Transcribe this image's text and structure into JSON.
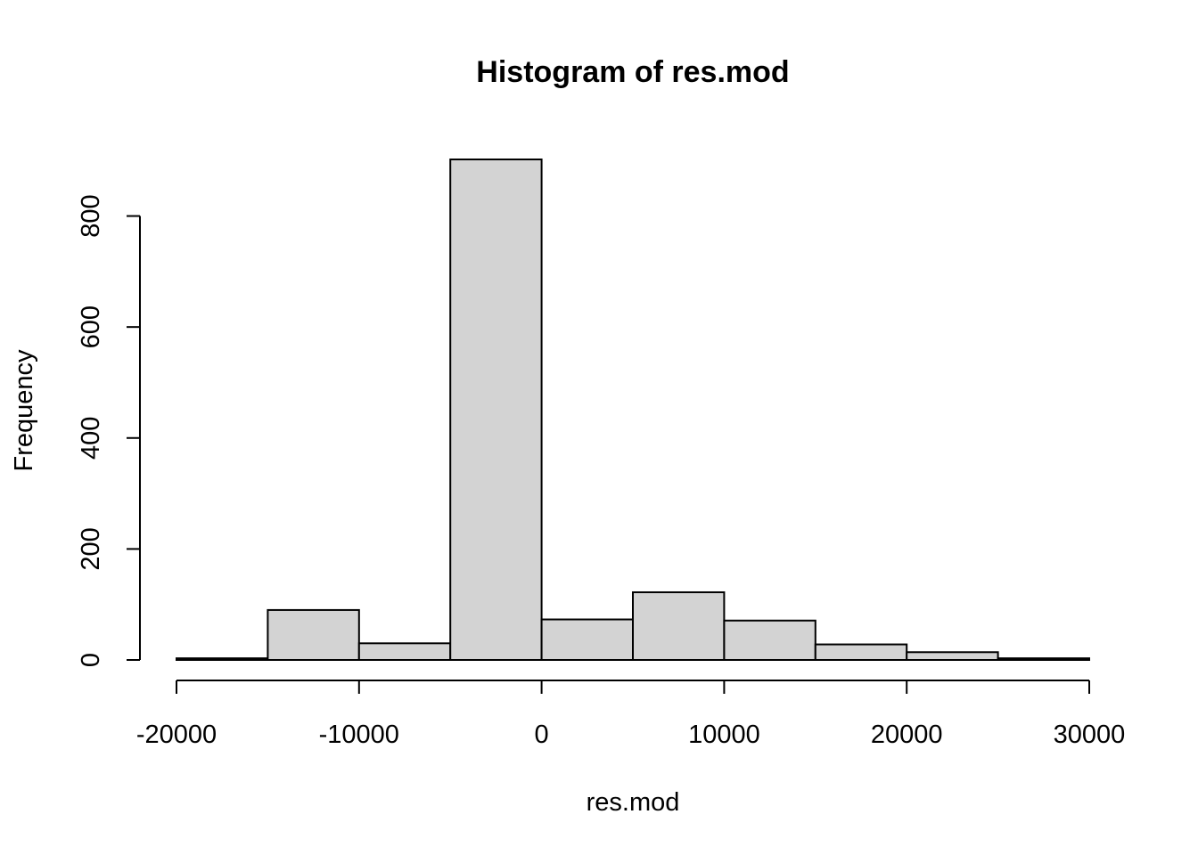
{
  "chart_data": {
    "type": "bar",
    "title": "Histogram of res.mod",
    "xlabel": "res.mod",
    "ylabel": "Frequency",
    "bin_edges": [
      -20000,
      -15000,
      -10000,
      -5000,
      0,
      5000,
      10000,
      15000,
      20000,
      25000,
      30000
    ],
    "values": [
      3,
      90,
      30,
      902,
      73,
      122,
      71,
      28,
      14,
      3
    ],
    "xlim": [
      -20000,
      30000
    ],
    "ylim": [
      0,
      902
    ],
    "x_ticks": [
      -20000,
      -10000,
      0,
      10000,
      20000,
      30000
    ],
    "x_tick_labels": [
      "-20000",
      "-10000",
      "0",
      "10000",
      "20000",
      "30000"
    ],
    "y_ticks": [
      0,
      200,
      400,
      600,
      800
    ],
    "y_tick_labels": [
      "0",
      "200",
      "400",
      "600",
      "800"
    ],
    "bar_color": "#d3d3d3",
    "grid": false,
    "legend": "none"
  }
}
